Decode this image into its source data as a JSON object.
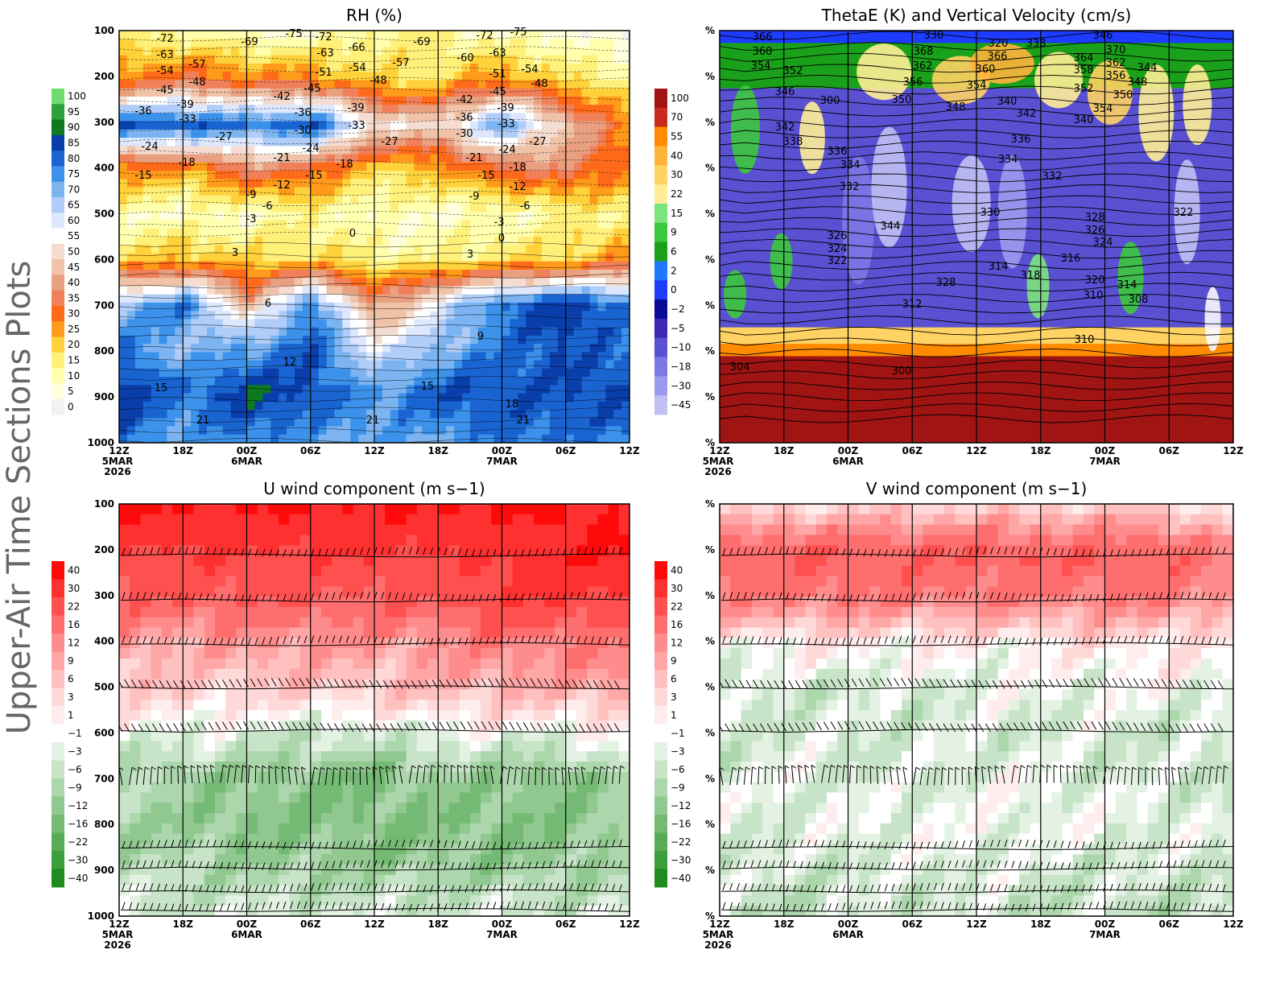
{
  "figure": {
    "side_title": "Upper-Air Time Sections Plots"
  },
  "time_axis": {
    "ticks": [
      "12Z",
      "18Z",
      "00Z",
      "06Z",
      "12Z",
      "18Z",
      "00Z",
      "06Z",
      "12Z"
    ],
    "sublabels": [
      [
        "5MAR",
        "2026"
      ],
      [],
      [
        "6MAR"
      ],
      [],
      [],
      [],
      [
        "7MAR"
      ],
      [],
      []
    ]
  },
  "pressure_ticks": [
    "100",
    "200",
    "300",
    "400",
    "500",
    "600",
    "700",
    "800",
    "900",
    "1000"
  ],
  "pressure_ticks_percent": [
    "%",
    "%",
    "%",
    "%",
    "%",
    "%",
    "%",
    "%",
    "%",
    "%"
  ],
  "colors": {
    "frame": "#000000",
    "rh_dry": "#ffff9a",
    "rh_moist": "#1a64d2",
    "red_strong": "#ee1010",
    "green_strong": "#2a9a2a"
  },
  "chart_data": [
    {
      "type": "heatmap",
      "title": "RH (%)",
      "y_ticks": "pressure",
      "levels": [
        100,
        200,
        300,
        400,
        500,
        600,
        700,
        800,
        900,
        1000
      ],
      "times": [
        "12Z 5MAR",
        "18Z",
        "00Z 6MAR",
        "06Z",
        "12Z",
        "18Z",
        "00Z 7MAR",
        "06Z",
        "12Z"
      ],
      "values_rh_by_level": [
        [
          15,
          15,
          10,
          10,
          15,
          15,
          10,
          10,
          5
        ],
        [
          30,
          35,
          30,
          30,
          20,
          20,
          30,
          20,
          15
        ],
        [
          85,
          85,
          80,
          85,
          55,
          50,
          75,
          50,
          30
        ],
        [
          30,
          25,
          40,
          35,
          20,
          25,
          35,
          40,
          30
        ],
        [
          10,
          10,
          10,
          15,
          10,
          10,
          10,
          15,
          15
        ],
        [
          20,
          25,
          20,
          20,
          15,
          15,
          20,
          20,
          30
        ],
        [
          70,
          80,
          45,
          80,
          40,
          60,
          80,
          90,
          80
        ],
        [
          80,
          70,
          75,
          85,
          60,
          70,
          80,
          85,
          80
        ],
        [
          90,
          80,
          90,
          85,
          75,
          85,
          85,
          85,
          85
        ],
        [
          80,
          75,
          80,
          75,
          75,
          75,
          80,
          80,
          80
        ]
      ],
      "colorbar": [
        "100",
        "95",
        "90",
        "85",
        "80",
        "75",
        "70",
        "65",
        "60",
        "55",
        "50",
        "45",
        "40",
        "35",
        "30",
        "25",
        "20",
        "15",
        "10",
        "5",
        "0"
      ],
      "contours": [
        "-72",
        "-63",
        "-54",
        "-45",
        "-36",
        "-24",
        "-15",
        "-57",
        "-48",
        "-39",
        "-33",
        "-27",
        "-18",
        "-69",
        "-75",
        "-72",
        "-63",
        "-66",
        "-54",
        "-51",
        "-42",
        "-45",
        "-36",
        "-30",
        "-21",
        "-24",
        "-15",
        "-9",
        "-12",
        "-6",
        "-3",
        "-39",
        "-33",
        "-18",
        "-57",
        "-48",
        "-27",
        "-69",
        "-60",
        "-42",
        "-36",
        "-30",
        "-21",
        "-15",
        "-9",
        "-72",
        "-75",
        "-63",
        "-54",
        "-51",
        "-45",
        "-39",
        "-33",
        "-24",
        "-18",
        "-12",
        "-3",
        "-48",
        "-27",
        "-6",
        "0",
        "0",
        "3",
        "3",
        "6",
        "9",
        "12",
        "15",
        "15",
        "18",
        "21",
        "21",
        "21"
      ]
    },
    {
      "type": "heatmap",
      "title": "ThetaE (K) and Vertical Velocity (cm/s)",
      "y_ticks": "percent",
      "colorbar": [
        "100",
        "70",
        "55",
        "40",
        "30",
        "22",
        "15",
        "9",
        "6",
        "2",
        "0",
        "−2",
        "−5",
        "−10",
        "−18",
        "−30",
        "−45"
      ],
      "contours": [
        "366",
        "360",
        "354",
        "352",
        "346",
        "342",
        "338",
        "336",
        "334",
        "332",
        "330",
        "368",
        "362",
        "356",
        "350",
        "344",
        "326",
        "324",
        "322",
        "320",
        "366",
        "360",
        "354",
        "348",
        "340",
        "342",
        "338",
        "364",
        "358",
        "352",
        "346",
        "370",
        "362",
        "356",
        "350",
        "344",
        "348",
        "354",
        "340",
        "336",
        "334",
        "332",
        "330",
        "328",
        "326",
        "324",
        "322",
        "328",
        "314",
        "318",
        "316",
        "320",
        "314",
        "312",
        "310",
        "308",
        "310",
        "304",
        "300",
        "300"
      ]
    },
    {
      "type": "heatmap",
      "title": "U wind component (m s−1)",
      "y_ticks": "pressure",
      "values_by_level": [
        [
          40,
          40,
          40,
          40,
          40,
          40,
          40,
          40,
          40
        ],
        [
          30,
          30,
          30,
          30,
          30,
          30,
          30,
          40,
          40
        ],
        [
          22,
          22,
          22,
          22,
          22,
          22,
          30,
          30,
          30
        ],
        [
          12,
          9,
          12,
          12,
          12,
          12,
          16,
          16,
          16
        ],
        [
          6,
          6,
          6,
          6,
          6,
          9,
          9,
          9,
          12
        ],
        [
          -1,
          -1,
          -3,
          -3,
          -3,
          -1,
          -1,
          -1,
          1
        ],
        [
          -6,
          -9,
          -9,
          -12,
          -12,
          -9,
          -9,
          -12,
          -6
        ],
        [
          -9,
          -9,
          -12,
          -12,
          -12,
          -12,
          -12,
          -12,
          -9
        ],
        [
          -6,
          -6,
          -9,
          -9,
          -9,
          -9,
          -9,
          -9,
          -6
        ],
        [
          -3,
          -3,
          -3,
          -3,
          -3,
          -3,
          -3,
          -3,
          -3
        ]
      ],
      "colorbar": [
        "40",
        "30",
        "22",
        "16",
        "12",
        "9",
        "6",
        "3",
        "1",
        "−1",
        "−3",
        "−6",
        "−9",
        "−12",
        "−16",
        "−22",
        "−30",
        "−40"
      ]
    },
    {
      "type": "heatmap",
      "title": "V wind component (m s−1)",
      "y_ticks": "percent",
      "values_by_level": [
        [
          3,
          6,
          6,
          6,
          6,
          6,
          6,
          6,
          3
        ],
        [
          22,
          22,
          22,
          22,
          22,
          22,
          22,
          22,
          16
        ],
        [
          16,
          16,
          16,
          16,
          16,
          16,
          16,
          16,
          12
        ],
        [
          1,
          1,
          3,
          1,
          1,
          1,
          3,
          3,
          1
        ],
        [
          -3,
          -3,
          -3,
          -3,
          -1,
          -1,
          -1,
          -1,
          -1
        ],
        [
          -3,
          -3,
          -3,
          -3,
          -3,
          -3,
          -3,
          -3,
          -3
        ],
        [
          -3,
          -1,
          -3,
          -3,
          -1,
          -1,
          -3,
          -3,
          -3
        ],
        [
          -1,
          -3,
          -1,
          -1,
          -1,
          -1,
          -1,
          -1,
          -3
        ],
        [
          -3,
          -3,
          -3,
          -3,
          -1,
          -3,
          -3,
          -3,
          -3
        ],
        [
          -3,
          -6,
          -3,
          -3,
          -3,
          -6,
          -3,
          -6,
          -3
        ]
      ],
      "colorbar": [
        "40",
        "30",
        "22",
        "16",
        "12",
        "9",
        "6",
        "3",
        "1",
        "−1",
        "−3",
        "−6",
        "−9",
        "−12",
        "−16",
        "−22",
        "−30",
        "−40"
      ]
    }
  ]
}
